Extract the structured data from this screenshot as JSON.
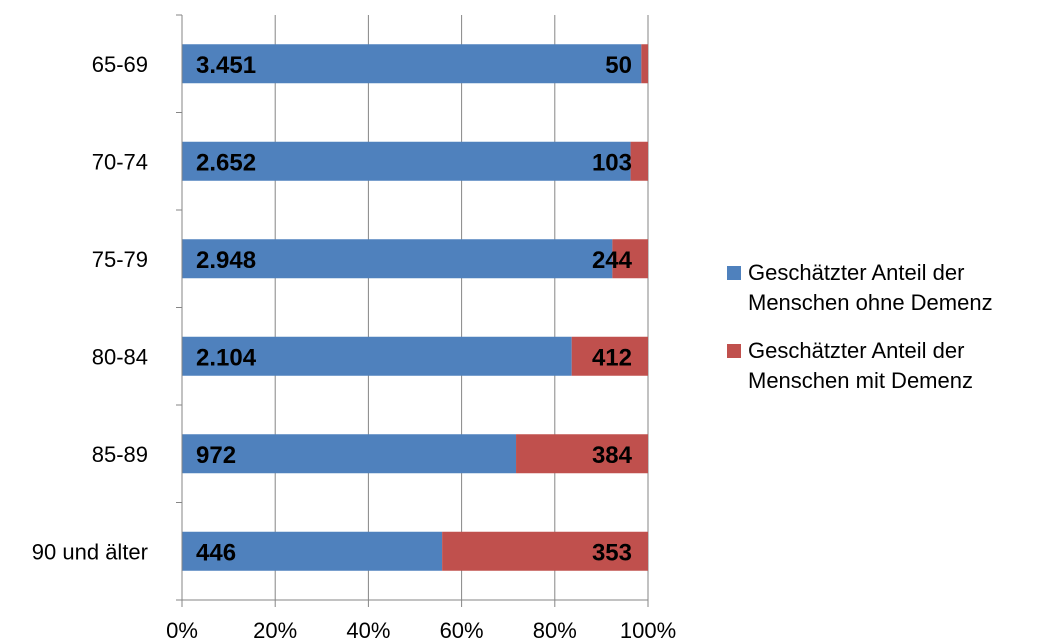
{
  "chart_data": {
    "type": "bar",
    "orientation": "horizontal",
    "stacked": "percent",
    "categories": [
      "65-69",
      "70-74",
      "75-79",
      "80-84",
      "85-89",
      "90 und älter"
    ],
    "series": [
      {
        "name": "Geschätzter Anteil der Menschen ohne Demenz",
        "color": "#4F81BD",
        "values": [
          3451,
          2652,
          2948,
          2104,
          972,
          446
        ],
        "labels": [
          "3.451",
          "2.652",
          "2.948",
          "2.104",
          "972",
          "446"
        ]
      },
      {
        "name": "Geschätzter Anteil der Menschen mit Demenz",
        "color": "#C0504D",
        "values": [
          50,
          103,
          244,
          412,
          384,
          353
        ],
        "labels": [
          "50",
          "103",
          "244",
          "412",
          "384",
          "353"
        ]
      }
    ],
    "xticks": [
      "0%",
      "20%",
      "40%",
      "60%",
      "80%",
      "100%"
    ],
    "xlim": [
      0,
      100
    ],
    "grid": true,
    "legend": "right"
  }
}
